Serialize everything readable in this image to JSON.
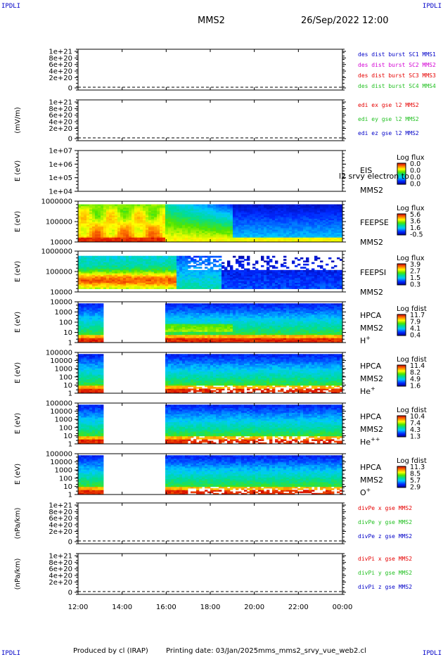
{
  "corner_label": "IPDLI",
  "header": {
    "spacecraft": "MMS2",
    "datetime": "26/Sep/2022 12:00"
  },
  "footer": {
    "produced_by": "Produced by cl (IRAP)",
    "printing_date": "Printing date: 03/Jan/2025",
    "script_name": "mms_mms2_srvy_vue_web2.cl"
  },
  "colors": {
    "red": "#e60000",
    "magenta": "#d400d4",
    "green": "#22c022",
    "blue": "#0000c8"
  },
  "chart_data": {
    "type": "heatmap",
    "x_axis": {
      "label": "",
      "ticks": [
        "12:00",
        "14:00",
        "16:00",
        "18:00",
        "20:00",
        "22:00",
        "00:00"
      ],
      "range_hours": [
        12,
        24
      ]
    },
    "panels": [
      {
        "id": "des-dist",
        "kind": "line",
        "ylabel": "",
        "yticks": [
          "1e+21",
          "8e+20",
          "6e+20",
          "4e+20",
          "2e+20",
          "0"
        ],
        "right_labels": [
          {
            "text": "des dist burst SC1 MMS1",
            "color": "blue"
          },
          {
            "text": "des dist burst SC2 MMS2",
            "color": "magenta"
          },
          {
            "text": "des dist burst SC3 MMS3",
            "color": "red"
          },
          {
            "text": "des dist burst SC4 MMS4",
            "color": "green"
          }
        ]
      },
      {
        "id": "edi",
        "kind": "line",
        "ylabel": "(mV/m)",
        "yticks": [
          "1e+21",
          "8e+20",
          "6e+20",
          "4e+20",
          "2e+20",
          "0"
        ],
        "right_labels": [
          {
            "text": "edi ex gse l2 MMS2",
            "color": "red"
          },
          {
            "text": "edi ey gse l2 MMS2",
            "color": "green"
          },
          {
            "text": "edi ez gse l2 MMS2",
            "color": "blue"
          }
        ]
      },
      {
        "id": "eis",
        "kind": "spectrogram",
        "ylabel": "E (eV)",
        "yticks": [
          "1e+07",
          "1e+06",
          "1e+05",
          "1e+04"
        ],
        "right_labels": [
          {
            "text": "EIS",
            "color": "black"
          },
          {
            "text": "MMS2",
            "color": "black"
          }
        ],
        "overlay_text": "l2 srvy electron to",
        "colorbar": {
          "title": "Log flux",
          "ticks": [
            "0.0",
            "0.0",
            "0.0",
            "0.0"
          ]
        }
      },
      {
        "id": "feepse",
        "kind": "spectrogram",
        "ylabel": "E (eV)",
        "yticks": [
          "1000000",
          "100000",
          "10000"
        ],
        "right_labels": [
          {
            "text": "FEEPSE",
            "color": "black"
          },
          {
            "text": "MMS2",
            "color": "black"
          }
        ],
        "colorbar": {
          "title": "Log flux",
          "ticks": [
            "5.6",
            "3.6",
            "1.6",
            "-0.5"
          ]
        }
      },
      {
        "id": "feepsi",
        "kind": "spectrogram",
        "ylabel": "E (eV)",
        "yticks": [
          "1000000",
          "100000",
          "10000"
        ],
        "right_labels": [
          {
            "text": "FEEPSI",
            "color": "black"
          },
          {
            "text": "MMS2",
            "color": "black"
          }
        ],
        "colorbar": {
          "title": "Log flux",
          "ticks": [
            "3.9",
            "2.7",
            "1.5",
            "0.3"
          ]
        }
      },
      {
        "id": "hpca-h",
        "kind": "spectrogram",
        "ylabel": "E (eV)",
        "yticks": [
          "10000",
          "1000",
          "100",
          "10",
          "1"
        ],
        "right_labels": [
          {
            "text": "HPCA",
            "color": "black"
          },
          {
            "text": "MMS2",
            "color": "black"
          },
          {
            "text": "H",
            "color": "black",
            "sup": "+"
          }
        ],
        "data_gap_hours": [
          13.2,
          15.9
        ],
        "colorbar": {
          "title": "Log fdist",
          "ticks": [
            "11.7",
            "7.9",
            "4.1",
            "0.4"
          ]
        }
      },
      {
        "id": "hpca-he",
        "kind": "spectrogram",
        "ylabel": "E (eV)",
        "yticks": [
          "100000",
          "10000",
          "1000",
          "100",
          "10",
          "1"
        ],
        "right_labels": [
          {
            "text": "HPCA",
            "color": "black"
          },
          {
            "text": "MMS2",
            "color": "black"
          },
          {
            "text": "He",
            "color": "black",
            "sup": "+"
          }
        ],
        "data_gap_hours": [
          13.2,
          15.9
        ],
        "colorbar": {
          "title": "Log fdist",
          "ticks": [
            "11.4",
            "8.2",
            "4.9",
            "1.6"
          ]
        }
      },
      {
        "id": "hpca-hepp",
        "kind": "spectrogram",
        "ylabel": "E (eV)",
        "yticks": [
          "100000",
          "10000",
          "1000",
          "100",
          "10",
          "1"
        ],
        "right_labels": [
          {
            "text": "HPCA",
            "color": "black"
          },
          {
            "text": "MMS2",
            "color": "black"
          },
          {
            "text": "He",
            "color": "black",
            "sup": "++"
          }
        ],
        "data_gap_hours": [
          13.2,
          15.9
        ],
        "colorbar": {
          "title": "Log fdist",
          "ticks": [
            "10.4",
            "7.4",
            "4.3",
            "1.3"
          ]
        }
      },
      {
        "id": "hpca-o",
        "kind": "spectrogram",
        "ylabel": "E (eV)",
        "yticks": [
          "100000",
          "10000",
          "1000",
          "100",
          "10",
          "1"
        ],
        "right_labels": [
          {
            "text": "HPCA",
            "color": "black"
          },
          {
            "text": "MMS2",
            "color": "black"
          },
          {
            "text": "O",
            "color": "black",
            "sup": "+"
          }
        ],
        "data_gap_hours": [
          13.2,
          15.9
        ],
        "colorbar": {
          "title": "Log fdist",
          "ticks": [
            "11.3",
            "8.5",
            "5.7",
            "2.9"
          ]
        }
      },
      {
        "id": "divpe",
        "kind": "line",
        "ylabel": "(nPa/km)",
        "yticks": [
          "1e+21",
          "8e+20",
          "6e+20",
          "4e+20",
          "2e+20",
          "0"
        ],
        "right_labels": [
          {
            "text": "divPe x gse MMS2",
            "color": "red"
          },
          {
            "text": "divPe y gse MMS2",
            "color": "green"
          },
          {
            "text": "divPe z gse MMS2",
            "color": "blue"
          }
        ]
      },
      {
        "id": "divpi",
        "kind": "line",
        "ylabel": "(nPa/km)",
        "yticks": [
          "1e+21",
          "8e+20",
          "6e+20",
          "4e+20",
          "2e+20",
          "0"
        ],
        "right_labels": [
          {
            "text": "divPi x gse MMS2",
            "color": "red"
          },
          {
            "text": "divPi y gse MMS2",
            "color": "green"
          },
          {
            "text": "divPi z gse MMS2",
            "color": "blue"
          }
        ]
      }
    ]
  }
}
